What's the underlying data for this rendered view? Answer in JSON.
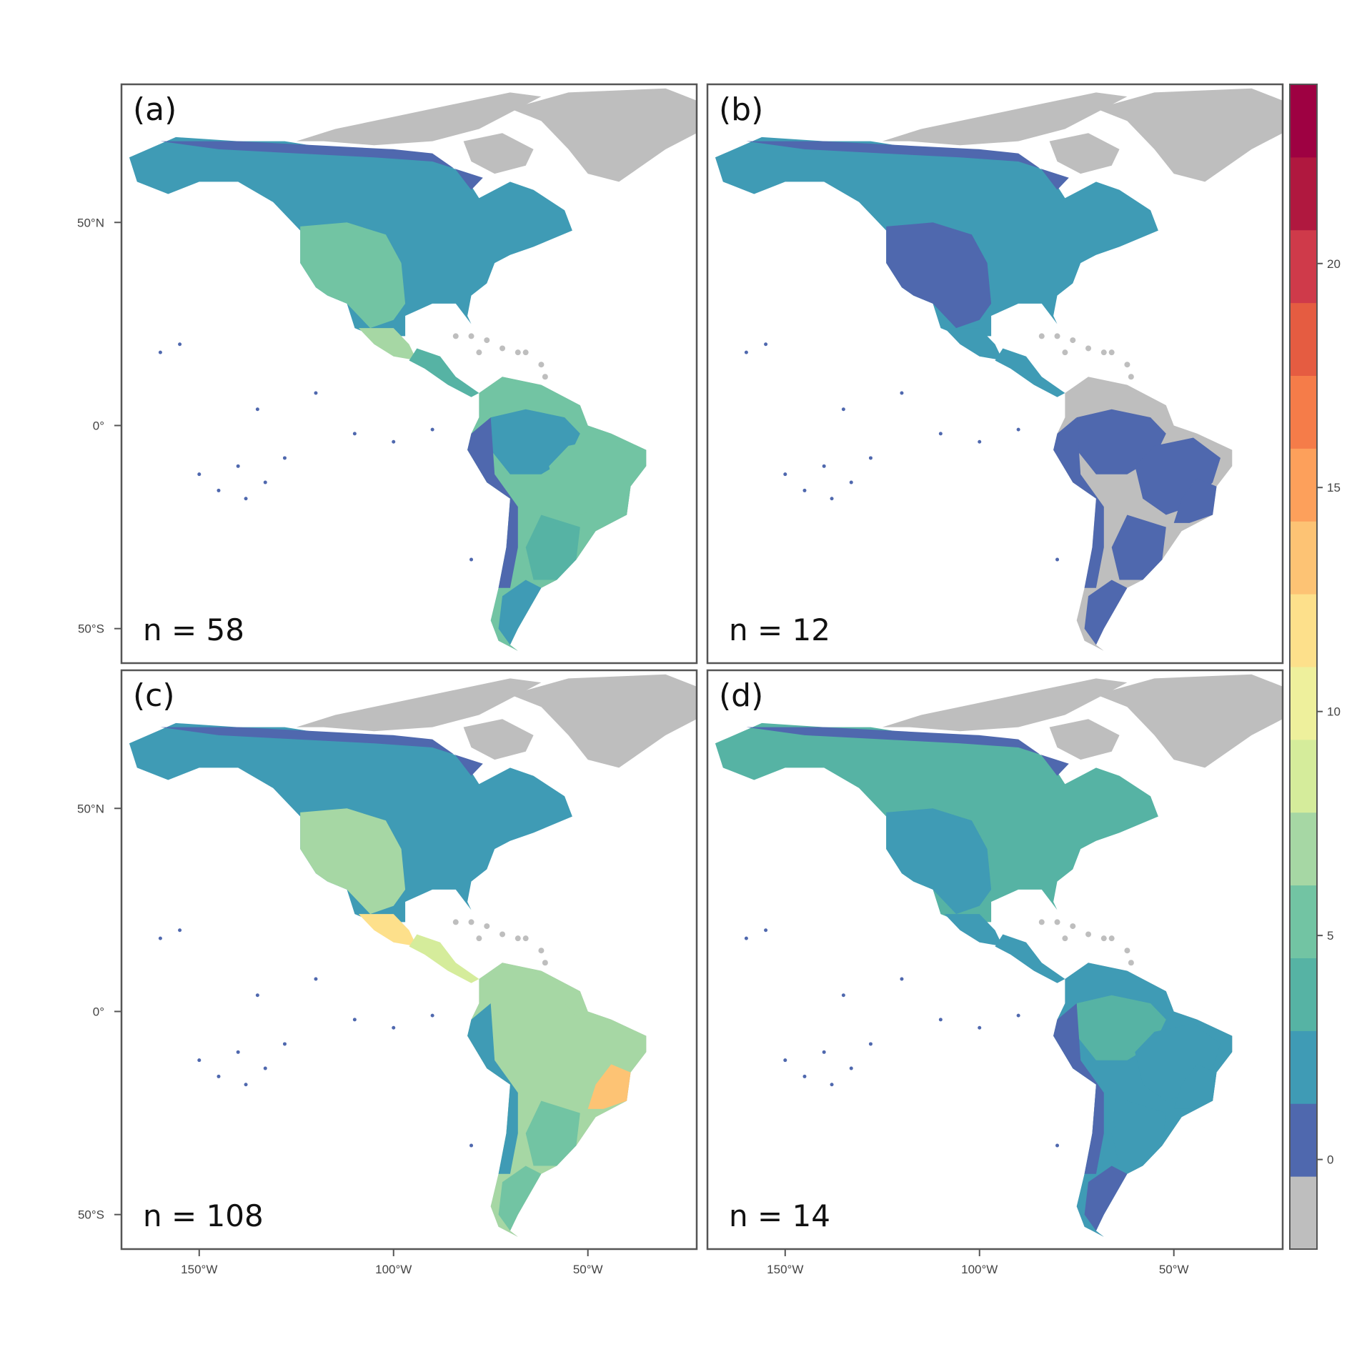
{
  "panels": [
    {
      "id": "a",
      "label": "(a)",
      "n_label": "n = 58",
      "n": 58,
      "fill": {
        "north": 3,
        "arctic": 1,
        "west": 6,
        "mexico": 9,
        "central_america": 5,
        "amazon": 2,
        "andes": 1,
        "brazil": 6,
        "east_brazil": 7,
        "southern_cone": 5,
        "patagonia": 3
      }
    },
    {
      "id": "b",
      "label": "(b)",
      "n_label": "n = 12",
      "n": 12,
      "fill": {
        "north": 3,
        "arctic": 1,
        "west": 1,
        "mexico": 2,
        "central_america": 3,
        "amazon": 1,
        "andes": 1,
        "brazil": 0,
        "east_brazil": 0,
        "southern_cone": 1,
        "patagonia": 1
      }
    },
    {
      "id": "c",
      "label": "(c)",
      "n_label": "n = 108",
      "n": 108,
      "fill": {
        "north": 3,
        "arctic": 1,
        "west": 8,
        "mexico": 14,
        "central_america": 10,
        "amazon": 9,
        "andes": 2,
        "brazil": 9,
        "east_brazil": 16,
        "southern_cone": 7,
        "patagonia": 6
      }
    },
    {
      "id": "d",
      "label": "(d)",
      "n_label": "n = 14",
      "n": 14,
      "fill": {
        "north": 5,
        "arctic": 1,
        "west": 3,
        "mexico": 3,
        "central_america": 3,
        "amazon": 4,
        "andes": 1,
        "brazil": 3,
        "east_brazil": 2,
        "southern_cone": 2,
        "patagonia": 1
      }
    }
  ],
  "axes": {
    "y_ticks": [
      {
        "label": "50°N",
        "lat": 50
      },
      {
        "label": "0°",
        "lat": 0
      },
      {
        "label": "50°S",
        "lat": -50
      }
    ],
    "x_ticks": [
      {
        "label": "150°W",
        "lon": -150
      },
      {
        "label": "100°W",
        "lon": -100
      },
      {
        "label": "50°W",
        "lon": -50
      }
    ]
  },
  "colorbar": {
    "tick_labels": [
      "0",
      "5",
      "10",
      "15",
      "20"
    ],
    "tick_values": [
      0,
      5,
      10,
      15,
      20
    ],
    "min": -2,
    "max": 24,
    "step": 2,
    "no_data_color": "#bebebe",
    "colors": [
      "#bebebe",
      "#4f68ae",
      "#3f9bb5",
      "#56b3a4",
      "#72c4a3",
      "#a6d7a4",
      "#d5ec9b",
      "#eef09c",
      "#fde08b",
      "#fdc374",
      "#fda05b",
      "#f57c49",
      "#e55c41",
      "#cf3a4a",
      "#b0183f",
      "#9e0142"
    ]
  },
  "land_color": "#bebebe"
}
